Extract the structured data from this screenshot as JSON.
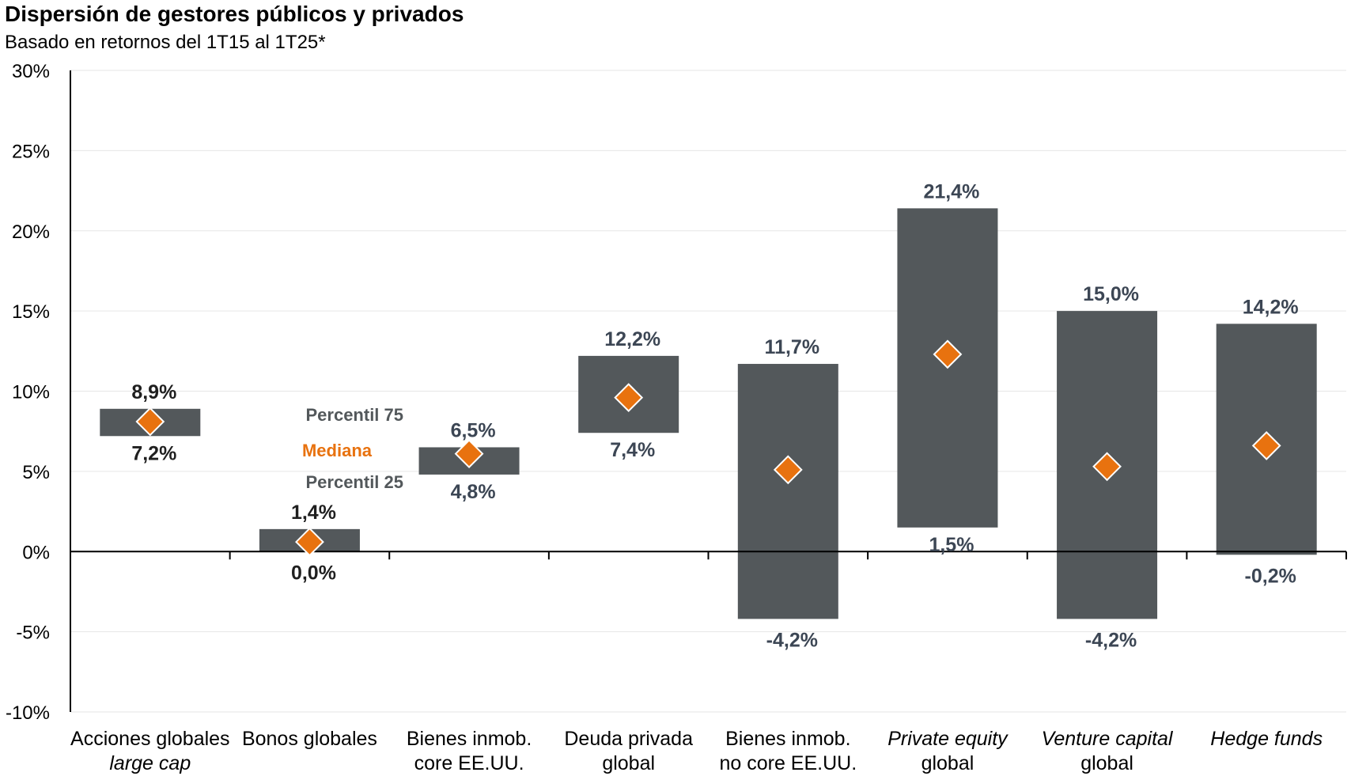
{
  "chart_data": {
    "type": "range-bar",
    "title": "Dispersión de gestores públicos y privados",
    "subtitle": "Basado en retornos del 1T15 al 1T25*",
    "ylim": [
      -10,
      30
    ],
    "yticks": [
      "30%",
      "25%",
      "20%",
      "15%",
      "10%",
      "5%",
      "0%",
      "-5%",
      "-10%"
    ],
    "ytick_values": [
      30,
      25,
      20,
      15,
      10,
      5,
      0,
      -5,
      -10
    ],
    "legend": {
      "p75": "Percentil 75",
      "median": "Mediana",
      "p25": "Percentil 25"
    },
    "colors": {
      "bar": "#53585b",
      "median": "#e8720f",
      "label": "#3c4654",
      "label_dark": "#1f1f1f",
      "grid": "#e6e6e6",
      "axis": "#000000"
    },
    "categories": [
      {
        "line1": "Acciones globales",
        "line2": "large cap",
        "italic1": false,
        "italic2": true,
        "p75": 8.9,
        "p25": 7.2,
        "median": 8.1,
        "p75_label": "8,9%",
        "p25_label": "7,2%",
        "dark": true
      },
      {
        "line1": "Bonos globales",
        "line2": "",
        "italic1": false,
        "italic2": false,
        "p75": 1.4,
        "p25": 0.0,
        "median": 0.6,
        "p75_label": "1,4%",
        "p25_label": "0,0%",
        "dark": true
      },
      {
        "line1": "Bienes inmob.",
        "line2": "core  EE.UU.",
        "italic1": false,
        "italic2": false,
        "p75": 6.5,
        "p25": 4.8,
        "median": 6.1,
        "p75_label": "6,5%",
        "p25_label": "4,8%",
        "dark": false
      },
      {
        "line1": "Deuda privada",
        "line2": "global",
        "italic1": false,
        "italic2": false,
        "p75": 12.2,
        "p25": 7.4,
        "median": 9.6,
        "p75_label": "12,2%",
        "p25_label": "7,4%",
        "dark": false
      },
      {
        "line1": "Bienes inmob.",
        "line2": "no core EE.UU.",
        "italic1": false,
        "italic2": false,
        "p75": 11.7,
        "p25": -4.2,
        "median": 5.1,
        "p75_label": "11,7%",
        "p25_label": "-4,2%",
        "dark": false
      },
      {
        "line1": "Private equity",
        "line2": "global",
        "italic1": true,
        "italic2": false,
        "p75": 21.4,
        "p25": 1.5,
        "median": 12.3,
        "p75_label": "21,4%",
        "p25_label": "1,5%",
        "dark": false
      },
      {
        "line1": "Venture capital",
        "line2": "global",
        "italic1": true,
        "italic2": false,
        "p75": 15.0,
        "p25": -4.2,
        "median": 5.3,
        "p75_label": "15,0%",
        "p25_label": "-4,2%",
        "dark": false
      },
      {
        "line1": "Hedge funds",
        "line2": "",
        "italic1": true,
        "italic2": false,
        "p75": 14.2,
        "p25": -0.2,
        "median": 6.6,
        "p75_label": "14,2%",
        "p25_label": "-0,2%",
        "dark": false
      }
    ]
  }
}
